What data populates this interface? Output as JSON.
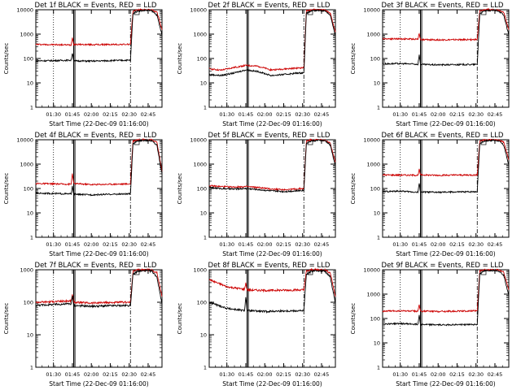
{
  "colors": {
    "events": "#000000",
    "lld": "#cc0000",
    "axis": "#000000"
  },
  "chart_data": [
    {
      "type": "line",
      "title": "Det 1f BLACK = Events, RED = LLD",
      "xlabel": "Start Time (22-Dec-09 01:16:00)",
      "ylabel": "Counts/sec",
      "xticks": [
        "01:30",
        "01:45",
        "02:00",
        "02:15",
        "02:30",
        "02:45"
      ],
      "xlim": [
        "01:16",
        "02:56"
      ],
      "ylim": [
        1,
        10000
      ],
      "yscale": "log",
      "yticks": [
        "1",
        "10",
        "100",
        "1000",
        "10000"
      ],
      "series": [
        {
          "name": "LLD",
          "x": [
            "01:16",
            "01:30",
            "01:44",
            "01:45",
            "01:46",
            "02:00",
            "02:15",
            "02:31",
            "02:33",
            "02:37",
            "02:44",
            "02:48",
            "02:52",
            "02:56"
          ],
          "values": [
            380,
            370,
            360,
            720,
            380,
            370,
            375,
            380,
            9000,
            10000,
            10000,
            9800,
            8000,
            1500
          ]
        },
        {
          "name": "Events",
          "x": [
            "01:16",
            "01:30",
            "01:44",
            "01:45",
            "01:46",
            "02:00",
            "02:15",
            "02:31",
            "02:33",
            "02:37",
            "02:44",
            "02:48",
            "02:52",
            "02:56"
          ],
          "values": [
            80,
            82,
            85,
            170,
            80,
            78,
            82,
            85,
            7000,
            9000,
            9500,
            9000,
            6000,
            900
          ]
        }
      ]
    },
    {
      "type": "line",
      "title": "Det 2f BLACK = Events, RED = LLD",
      "xlabel": "Start Time (22-Dec-09 01:16:00)",
      "ylabel": "Counts/sec",
      "xticks": [
        "01:30",
        "01:45",
        "02:00",
        "02:15",
        "02:30",
        "02:45"
      ],
      "xlim": [
        "01:16",
        "02:56"
      ],
      "ylim": [
        1,
        10000
      ],
      "yscale": "log",
      "yticks": [
        "1",
        "10",
        "100",
        "1000",
        "10000"
      ],
      "series": [
        {
          "name": "LLD",
          "x": [
            "01:16",
            "01:25",
            "01:35",
            "01:45",
            "01:55",
            "02:05",
            "02:15",
            "02:25",
            "02:31",
            "02:33",
            "02:37",
            "02:44",
            "02:48",
            "02:52",
            "02:56"
          ],
          "values": [
            38,
            33,
            42,
            52,
            48,
            34,
            37,
            40,
            42,
            9000,
            10000,
            10000,
            9500,
            7000,
            1200
          ]
        },
        {
          "name": "Events",
          "x": [
            "01:16",
            "01:25",
            "01:35",
            "01:45",
            "01:55",
            "02:05",
            "02:15",
            "02:25",
            "02:31",
            "02:33",
            "02:37",
            "02:44",
            "02:48",
            "02:52",
            "02:56"
          ],
          "values": [
            22,
            20,
            25,
            34,
            29,
            20,
            22,
            25,
            26,
            7000,
            9000,
            9500,
            9000,
            6000,
            800
          ]
        }
      ]
    },
    {
      "type": "line",
      "title": "Det 3f BLACK = Events, RED = LLD",
      "xlabel": "Start Time (22-Dec-09 01:16:00)",
      "ylabel": "Counts/sec",
      "xticks": [
        "01:30",
        "01:45",
        "02:00",
        "02:15",
        "02:30",
        "02:45"
      ],
      "xlim": [
        "01:16",
        "02:56"
      ],
      "ylim": [
        1,
        10000
      ],
      "yscale": "log",
      "yticks": [
        "1",
        "10",
        "100",
        "1000",
        "10000"
      ],
      "series": [
        {
          "name": "LLD",
          "x": [
            "01:16",
            "01:30",
            "01:44",
            "01:45",
            "01:46",
            "02:00",
            "02:15",
            "02:31",
            "02:33",
            "02:37",
            "02:44",
            "02:48",
            "02:52",
            "02:56"
          ],
          "values": [
            650,
            640,
            620,
            1100,
            600,
            580,
            590,
            600,
            9000,
            10000,
            10000,
            9800,
            8000,
            1500
          ]
        },
        {
          "name": "Events",
          "x": [
            "01:16",
            "01:30",
            "01:44",
            "01:45",
            "01:46",
            "02:00",
            "02:15",
            "02:31",
            "02:33",
            "02:37",
            "02:44",
            "02:48",
            "02:52",
            "02:56"
          ],
          "values": [
            60,
            62,
            58,
            140,
            57,
            55,
            56,
            57,
            7000,
            9000,
            9500,
            9000,
            6000,
            900
          ]
        }
      ]
    },
    {
      "type": "line",
      "title": "Det 4f BLACK = Events, RED = LLD",
      "xlabel": "Start Time (22-Dec-09 01:16:00)",
      "ylabel": "Counts/sec",
      "xticks": [
        "01:30",
        "01:45",
        "02:00",
        "02:15",
        "02:30",
        "02:45"
      ],
      "xlim": [
        "01:16",
        "02:56"
      ],
      "ylim": [
        1,
        10000
      ],
      "yscale": "log",
      "yticks": [
        "1",
        "10",
        "100",
        "1000",
        "10000"
      ],
      "series": [
        {
          "name": "LLD",
          "x": [
            "01:16",
            "01:30",
            "01:44",
            "01:45",
            "01:46",
            "02:00",
            "02:15",
            "02:31",
            "02:33",
            "02:37",
            "02:44",
            "02:48",
            "02:52",
            "02:56"
          ],
          "values": [
            160,
            155,
            150,
            420,
            160,
            145,
            150,
            155,
            9000,
            10000,
            10000,
            9800,
            8000,
            500
          ]
        },
        {
          "name": "Events",
          "x": [
            "01:16",
            "01:30",
            "01:44",
            "01:45",
            "01:46",
            "02:00",
            "02:15",
            "02:31",
            "02:33",
            "02:37",
            "02:44",
            "02:48",
            "02:52",
            "02:56"
          ],
          "values": [
            65,
            62,
            60,
            120,
            58,
            55,
            58,
            60,
            7000,
            9000,
            9500,
            9000,
            6000,
            400
          ]
        }
      ]
    },
    {
      "type": "line",
      "title": "Det 5f BLACK = Events, RED = LLD",
      "xlabel": "Start Time (22-Dec-09 01:16:00)",
      "ylabel": "Counts/sec",
      "xticks": [
        "01:30",
        "01:45",
        "02:00",
        "02:15",
        "02:30",
        "02:45"
      ],
      "xlim": [
        "01:16",
        "02:56"
      ],
      "ylim": [
        1,
        10000
      ],
      "yscale": "log",
      "yticks": [
        "1",
        "10",
        "100",
        "1000",
        "10000"
      ],
      "series": [
        {
          "name": "LLD",
          "x": [
            "01:16",
            "01:25",
            "01:35",
            "01:45",
            "01:55",
            "02:05",
            "02:15",
            "02:25",
            "02:31",
            "02:33",
            "02:37",
            "02:44",
            "02:48",
            "02:52",
            "02:56"
          ],
          "values": [
            130,
            120,
            115,
            120,
            110,
            95,
            90,
            95,
            100,
            9000,
            10000,
            10000,
            9500,
            7000,
            1200
          ]
        },
        {
          "name": "Events",
          "x": [
            "01:16",
            "01:25",
            "01:35",
            "01:45",
            "01:55",
            "02:05",
            "02:15",
            "02:25",
            "02:31",
            "02:33",
            "02:37",
            "02:44",
            "02:48",
            "02:52",
            "02:56"
          ],
          "values": [
            110,
            100,
            95,
            100,
            90,
            80,
            75,
            80,
            85,
            7000,
            9000,
            9500,
            9000,
            6000,
            800
          ]
        }
      ]
    },
    {
      "type": "line",
      "title": "Det 6f BLACK = Events, RED = LLD",
      "xlabel": "Start Time (22-Dec-09 01:16:00)",
      "ylabel": "Counts/sec",
      "xticks": [
        "01:30",
        "01:45",
        "02:00",
        "02:15",
        "02:30",
        "02:45"
      ],
      "xlim": [
        "01:16",
        "02:56"
      ],
      "ylim": [
        1,
        10000
      ],
      "yscale": "log",
      "yticks": [
        "1",
        "10",
        "100",
        "1000",
        "10000"
      ],
      "series": [
        {
          "name": "LLD",
          "x": [
            "01:16",
            "01:30",
            "01:44",
            "01:45",
            "01:46",
            "02:00",
            "02:15",
            "02:31",
            "02:33",
            "02:37",
            "02:44",
            "02:48",
            "02:52",
            "02:56"
          ],
          "values": [
            360,
            355,
            350,
            600,
            360,
            350,
            355,
            360,
            9000,
            10000,
            10000,
            9800,
            8000,
            1500
          ]
        },
        {
          "name": "Events",
          "x": [
            "01:16",
            "01:30",
            "01:44",
            "01:45",
            "01:46",
            "02:00",
            "02:15",
            "02:31",
            "02:33",
            "02:37",
            "02:44",
            "02:48",
            "02:52",
            "02:56"
          ],
          "values": [
            75,
            78,
            70,
            160,
            72,
            70,
            72,
            75,
            7000,
            9000,
            9500,
            9000,
            6000,
            900
          ]
        }
      ]
    },
    {
      "type": "line",
      "title": "Det 7f BLACK = Events, RED = LLD",
      "xlabel": "Start Time (22-Dec-09 01:16:00)",
      "ylabel": "Counts/sec",
      "xticks": [
        "01:30",
        "01:45",
        "02:00",
        "02:15",
        "02:30",
        "02:45"
      ],
      "xlim": [
        "01:16",
        "02:56"
      ],
      "ylim": [
        1,
        1000
      ],
      "yscale": "log",
      "yticks": [
        "1",
        "10",
        "100",
        "1000"
      ],
      "series": [
        {
          "name": "LLD",
          "x": [
            "01:16",
            "01:30",
            "01:44",
            "01:45",
            "01:46",
            "02:00",
            "02:15",
            "02:31",
            "02:33",
            "02:37",
            "02:44",
            "02:48",
            "02:52",
            "02:56"
          ],
          "values": [
            100,
            105,
            110,
            180,
            100,
            95,
            98,
            100,
            900,
            1000,
            1000,
            980,
            800,
            150
          ]
        },
        {
          "name": "Events",
          "x": [
            "01:16",
            "01:30",
            "01:44",
            "01:45",
            "01:46",
            "02:00",
            "02:15",
            "02:31",
            "02:33",
            "02:37",
            "02:44",
            "02:48",
            "02:52",
            "02:56"
          ],
          "values": [
            80,
            85,
            90,
            150,
            80,
            75,
            78,
            80,
            700,
            900,
            950,
            900,
            600,
            90
          ]
        }
      ]
    },
    {
      "type": "line",
      "title": "Det 8f BLACK = Events, RED = LLD",
      "xlabel": "Start Time (22-Dec-09 01:16:00)",
      "ylabel": "Counts/sec",
      "xticks": [
        "01:30",
        "01:45",
        "02:00",
        "02:15",
        "02:30",
        "02:45"
      ],
      "xlim": [
        "01:16",
        "02:56"
      ],
      "ylim": [
        1,
        1000
      ],
      "yscale": "log",
      "yticks": [
        "1",
        "10",
        "100",
        "1000"
      ],
      "series": [
        {
          "name": "LLD",
          "x": [
            "01:16",
            "01:30",
            "01:44",
            "01:45",
            "01:46",
            "02:00",
            "02:15",
            "02:31",
            "02:33",
            "02:37",
            "02:44",
            "02:48",
            "02:52",
            "02:56"
          ],
          "values": [
            500,
            300,
            250,
            400,
            240,
            230,
            235,
            240,
            900,
            1000,
            1000,
            980,
            800,
            150
          ]
        },
        {
          "name": "Events",
          "x": [
            "01:16",
            "01:30",
            "01:44",
            "01:45",
            "01:46",
            "02:00",
            "02:15",
            "02:31",
            "02:33",
            "02:37",
            "02:44",
            "02:48",
            "02:52",
            "02:56"
          ],
          "values": [
            100,
            65,
            55,
            150,
            55,
            52,
            54,
            55,
            700,
            900,
            950,
            900,
            600,
            90
          ]
        }
      ]
    },
    {
      "type": "line",
      "title": "Det 9f BLACK = Events, RED = LLD",
      "xlabel": "Start Time (22-Dec-09 01:16:00)",
      "ylabel": "Counts/sec",
      "xticks": [
        "01:30",
        "01:45",
        "02:00",
        "02:15",
        "02:30",
        "02:45"
      ],
      "xlim": [
        "01:16",
        "02:56"
      ],
      "ylim": [
        1,
        10000
      ],
      "yscale": "log",
      "yticks": [
        "1",
        "10",
        "100",
        "1000",
        "10000"
      ],
      "series": [
        {
          "name": "LLD",
          "x": [
            "01:16",
            "01:30",
            "01:44",
            "01:45",
            "01:46",
            "02:00",
            "02:15",
            "02:31",
            "02:33",
            "02:37",
            "02:44",
            "02:48",
            "02:52",
            "02:56"
          ],
          "values": [
            200,
            205,
            200,
            350,
            200,
            195,
            200,
            205,
            9000,
            10000,
            10000,
            9800,
            8000,
            1500
          ]
        },
        {
          "name": "Events",
          "x": [
            "01:16",
            "01:30",
            "01:44",
            "01:45",
            "01:46",
            "02:00",
            "02:15",
            "02:31",
            "02:33",
            "02:37",
            "02:44",
            "02:48",
            "02:52",
            "02:56"
          ],
          "values": [
            60,
            62,
            58,
            140,
            57,
            55,
            56,
            57,
            7000,
            9000,
            9500,
            9000,
            6000,
            900
          ]
        }
      ]
    }
  ]
}
